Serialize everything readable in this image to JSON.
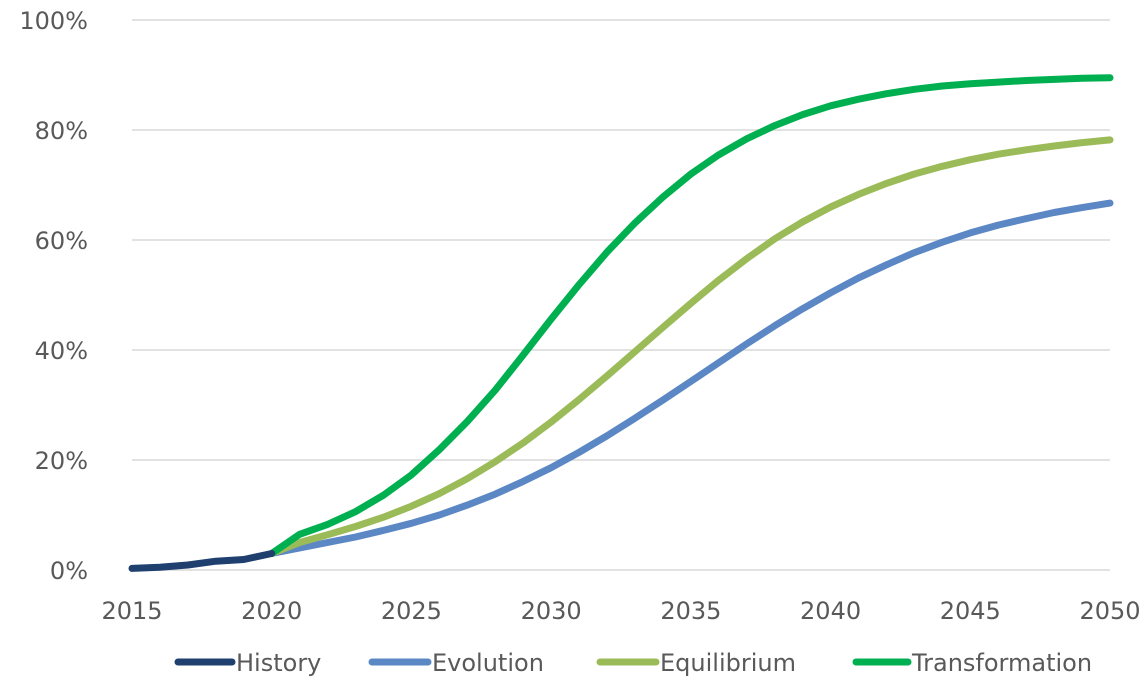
{
  "chart_data": {
    "type": "line",
    "title": "",
    "xlabel": "",
    "ylabel": "",
    "xlim": [
      2015,
      2050
    ],
    "ylim": [
      0,
      100
    ],
    "grid": true,
    "legend_position": "bottom",
    "x_ticks": [
      "2015",
      "2020",
      "2025",
      "2030",
      "2035",
      "2040",
      "2045",
      "2050"
    ],
    "y_ticks": [
      "0%",
      "20%",
      "40%",
      "60%",
      "80%",
      "100%"
    ],
    "series": [
      {
        "name": "History",
        "color": "#1f3f6e",
        "x": [
          2015,
          2016,
          2017,
          2018,
          2019,
          2020
        ],
        "y": [
          0.3,
          0.5,
          0.9,
          1.6,
          1.9,
          3.0
        ]
      },
      {
        "name": "Evolution",
        "color": "#5b87c5",
        "x": [
          2020,
          2021,
          2022,
          2023,
          2024,
          2025,
          2026,
          2027,
          2028,
          2029,
          2030,
          2031,
          2032,
          2033,
          2034,
          2035,
          2036,
          2037,
          2038,
          2039,
          2040,
          2041,
          2042,
          2043,
          2044,
          2045,
          2046,
          2047,
          2048,
          2049,
          2050
        ],
        "y": [
          3.0,
          4.0,
          5.0,
          6.0,
          7.2,
          8.5,
          10.0,
          11.8,
          13.8,
          16.1,
          18.6,
          21.4,
          24.4,
          27.6,
          30.9,
          34.3,
          37.7,
          41.1,
          44.4,
          47.5,
          50.4,
          53.1,
          55.5,
          57.7,
          59.6,
          61.3,
          62.7,
          63.9,
          65.0,
          65.9,
          66.7
        ]
      },
      {
        "name": "Equilibrium",
        "color": "#9bbb59",
        "x": [
          2020,
          2021,
          2022,
          2023,
          2024,
          2025,
          2026,
          2027,
          2028,
          2029,
          2030,
          2031,
          2032,
          2033,
          2034,
          2035,
          2036,
          2037,
          2038,
          2039,
          2040,
          2041,
          2042,
          2043,
          2044,
          2045,
          2046,
          2047,
          2048,
          2049,
          2050
        ],
        "y": [
          3.0,
          5.0,
          6.4,
          7.9,
          9.6,
          11.6,
          13.9,
          16.6,
          19.7,
          23.1,
          26.9,
          31.0,
          35.3,
          39.7,
          44.1,
          48.5,
          52.7,
          56.6,
          60.2,
          63.3,
          66.0,
          68.3,
          70.3,
          72.0,
          73.4,
          74.6,
          75.6,
          76.4,
          77.1,
          77.7,
          78.2
        ]
      },
      {
        "name": "Transformation",
        "color": "#00b050",
        "x": [
          2020,
          2021,
          2022,
          2023,
          2024,
          2025,
          2026,
          2027,
          2028,
          2029,
          2030,
          2031,
          2032,
          2033,
          2034,
          2035,
          2036,
          2037,
          2038,
          2039,
          2040,
          2041,
          2042,
          2043,
          2044,
          2045,
          2046,
          2047,
          2048,
          2049,
          2050
        ],
        "y": [
          3.0,
          6.5,
          8.3,
          10.6,
          13.6,
          17.3,
          21.9,
          27.0,
          32.7,
          39.1,
          45.6,
          51.9,
          57.8,
          63.1,
          67.8,
          72.0,
          75.5,
          78.4,
          80.8,
          82.8,
          84.4,
          85.6,
          86.6,
          87.4,
          88.0,
          88.4,
          88.7,
          89.0,
          89.2,
          89.4,
          89.5
        ]
      }
    ]
  }
}
